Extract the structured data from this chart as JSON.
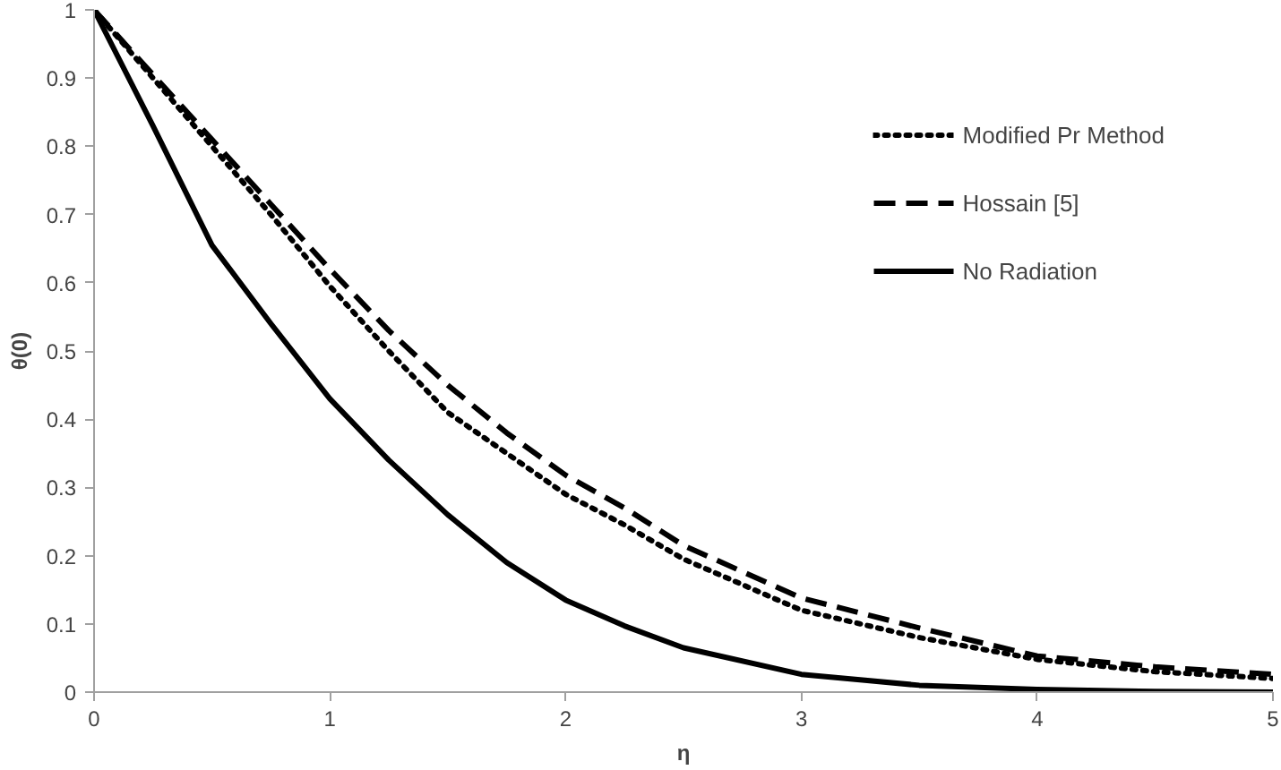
{
  "chart_data": {
    "type": "line",
    "xlabel": "η",
    "ylabel": "θ(0)",
    "x": [
      0,
      0.25,
      0.5,
      0.75,
      1,
      1.25,
      1.5,
      1.75,
      2,
      2.25,
      2.5,
      3,
      3.5,
      4,
      4.5,
      5
    ],
    "series": [
      {
        "name": "Modified Pr Method",
        "color": "#000000",
        "line_style": "dotted",
        "values": [
          1,
          0.9,
          0.8,
          0.7,
          0.595,
          0.5,
          0.41,
          0.35,
          0.29,
          0.245,
          0.195,
          0.12,
          0.08,
          0.048,
          0.03,
          0.02
        ]
      },
      {
        "name": "Hossain [5]",
        "color": "#000000",
        "line_style": "dashed",
        "values": [
          1,
          0.905,
          0.81,
          0.715,
          0.62,
          0.53,
          0.45,
          0.38,
          0.318,
          0.27,
          0.215,
          0.138,
          0.094,
          0.053,
          0.037,
          0.026
        ]
      },
      {
        "name": "No Radiation",
        "color": "#000000",
        "line_style": "solid",
        "values": [
          1,
          0.83,
          0.655,
          0.54,
          0.43,
          0.34,
          0.26,
          0.19,
          0.135,
          0.097,
          0.065,
          0.026,
          0.01,
          0.004,
          0.001,
          0
        ]
      }
    ],
    "xlim": [
      0,
      5
    ],
    "xticks": [
      0,
      1,
      2,
      3,
      4,
      5
    ],
    "ylim": [
      0,
      1
    ],
    "yticks": [
      0,
      0.1,
      0.2,
      0.3,
      0.4,
      0.5,
      0.6,
      0.7,
      0.8,
      0.9,
      1
    ],
    "grid": false,
    "legend": "top right",
    "marker": "none"
  }
}
